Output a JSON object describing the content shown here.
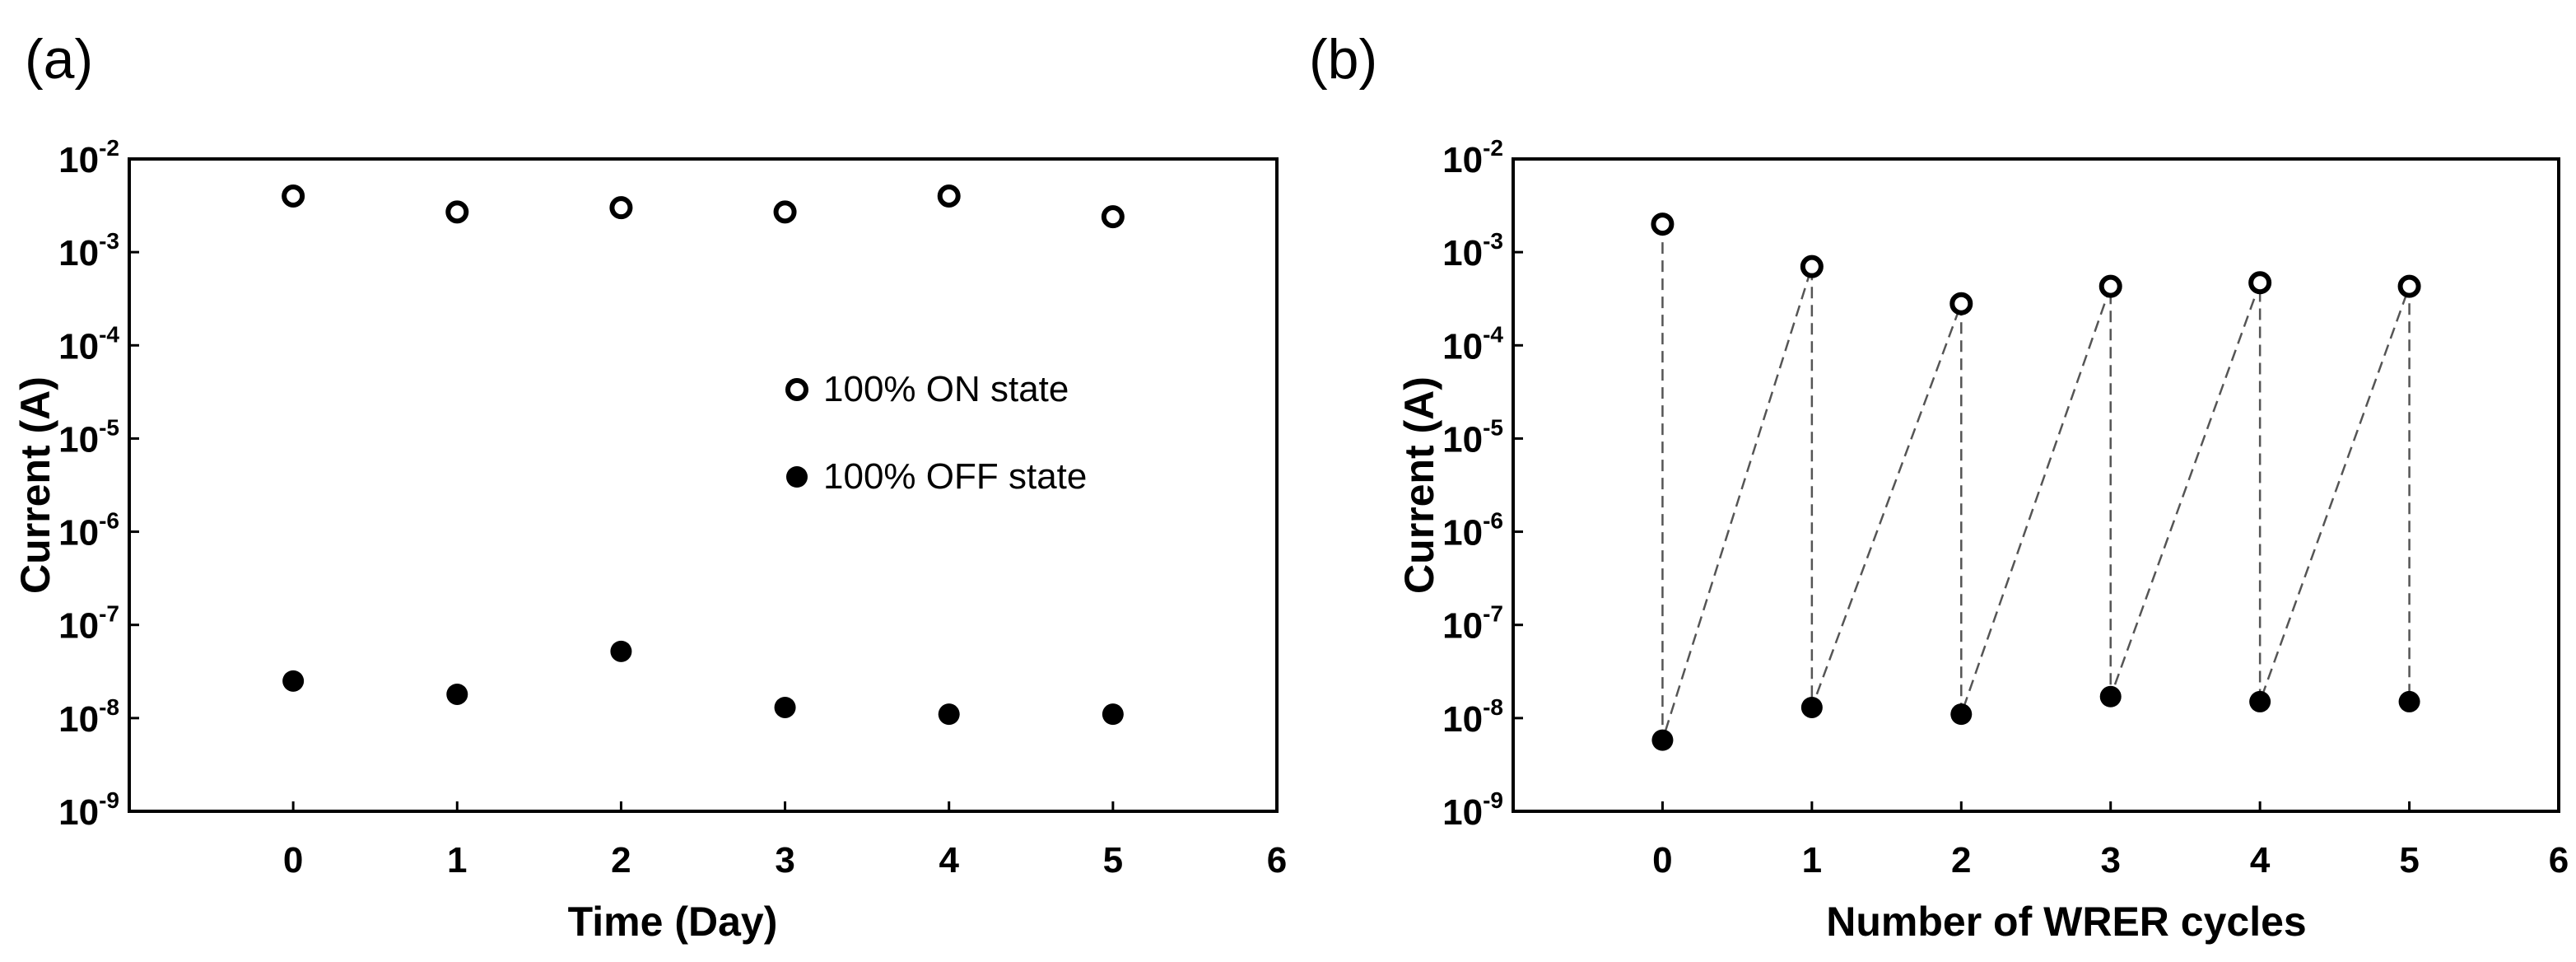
{
  "chart_data": [
    {
      "type": "scatter",
      "panel_label": "(a)",
      "xlabel": "Time (Day)",
      "ylabel": "Current (A)",
      "xlim": [
        -1,
        6
      ],
      "xticks": [
        0,
        1,
        2,
        3,
        4,
        5,
        6
      ],
      "ylim": [
        1e-09,
        0.01
      ],
      "yscale": "log",
      "yticks": [
        {
          "base": "10",
          "exp": "-2"
        },
        {
          "base": "10",
          "exp": "-3"
        },
        {
          "base": "10",
          "exp": "-4"
        },
        {
          "base": "10",
          "exp": "-5"
        },
        {
          "base": "10",
          "exp": "-6"
        },
        {
          "base": "10",
          "exp": "-7"
        },
        {
          "base": "10",
          "exp": "-8"
        },
        {
          "base": "10",
          "exp": "-9"
        }
      ],
      "grid": false,
      "legend_position": "center-right",
      "series": [
        {
          "name": "100% ON state",
          "marker": "open-circle",
          "x": [
            0,
            1,
            2,
            3,
            4,
            5
          ],
          "y": [
            0.004,
            0.0027,
            0.003,
            0.0027,
            0.004,
            0.0024
          ]
        },
        {
          "name": "100% OFF state",
          "marker": "filled-circle",
          "x": [
            0,
            1,
            2,
            3,
            4,
            5
          ],
          "y": [
            2.5e-08,
            1.8e-08,
            5.2e-08,
            1.3e-08,
            1.1e-08,
            1.1e-08
          ]
        }
      ]
    },
    {
      "type": "scatter",
      "panel_label": "(b)",
      "xlabel": "Number of WRER cycles",
      "ylabel": "Current (A)",
      "xlim": [
        -1,
        6
      ],
      "xticks": [
        0,
        1,
        2,
        3,
        4,
        5,
        6
      ],
      "ylim": [
        1e-09,
        0.01
      ],
      "yscale": "log",
      "yticks": [
        {
          "base": "10",
          "exp": "-2"
        },
        {
          "base": "10",
          "exp": "-3"
        },
        {
          "base": "10",
          "exp": "-4"
        },
        {
          "base": "10",
          "exp": "-5"
        },
        {
          "base": "10",
          "exp": "-6"
        },
        {
          "base": "10",
          "exp": "-7"
        },
        {
          "base": "10",
          "exp": "-8"
        },
        {
          "base": "10",
          "exp": "-9"
        }
      ],
      "grid": false,
      "connector": "dashed",
      "series": [
        {
          "marker": "open-circle",
          "x": [
            0,
            1,
            2,
            3,
            4,
            5
          ],
          "y": [
            0.002,
            0.0007,
            0.00028,
            0.00043,
            0.00047,
            0.00043
          ]
        },
        {
          "marker": "filled-circle",
          "x": [
            0,
            1,
            2,
            3,
            4,
            5
          ],
          "y": [
            5.8e-09,
            1.3e-08,
            1.1e-08,
            1.7e-08,
            1.5e-08,
            1.5e-08
          ]
        }
      ]
    }
  ]
}
